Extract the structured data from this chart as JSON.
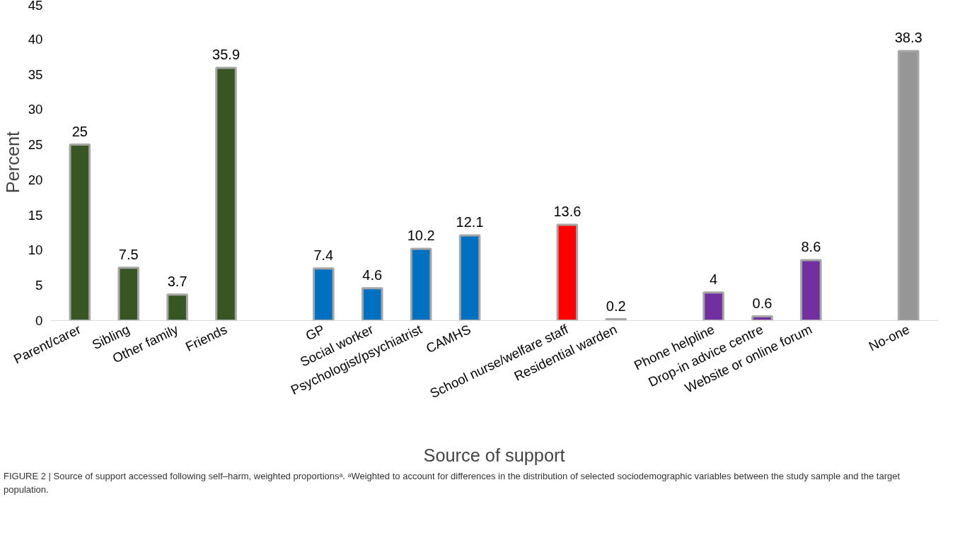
{
  "chart_data": {
    "type": "bar",
    "xlabel": "Source of support",
    "ylabel": "Percent",
    "categories": [
      "Parent/carer",
      "Sibling",
      "Other family",
      "Friends",
      null,
      "GP",
      "Social worker",
      "Psychologist/psychiatrist",
      "CAMHS",
      null,
      "School nurse/welfare staff",
      "Residential warden",
      null,
      "Phone helpline",
      "Drop-in advice centre",
      "Website or online forum",
      null,
      "No-one"
    ],
    "values": [
      25,
      7.5,
      3.7,
      35.9,
      null,
      7.4,
      4.6,
      10.2,
      12.1,
      null,
      13.6,
      0.2,
      null,
      4,
      0.6,
      8.6,
      null,
      38.3
    ],
    "colors": [
      "#375623",
      "#375623",
      "#375623",
      "#375623",
      null,
      "#0070c0",
      "#0070c0",
      "#0070c0",
      "#0070c0",
      null,
      "#ff0000",
      "#ff0000",
      null,
      "#7030a0",
      "#7030a0",
      "#7030a0",
      null,
      "#969696"
    ],
    "ylim": [
      0,
      45
    ],
    "yticks": [
      0,
      5,
      10,
      15,
      20,
      25,
      30,
      35,
      40,
      45
    ],
    "grid": false,
    "data_labels": true,
    "annotations": [
      "FIGURE 2 | Source of support accessed following self–harm, weighted proportionsᵃ. ᵃWeighted to account for differences in the distribution of selected sociodemographic variables between the study sample and the target population."
    ]
  }
}
